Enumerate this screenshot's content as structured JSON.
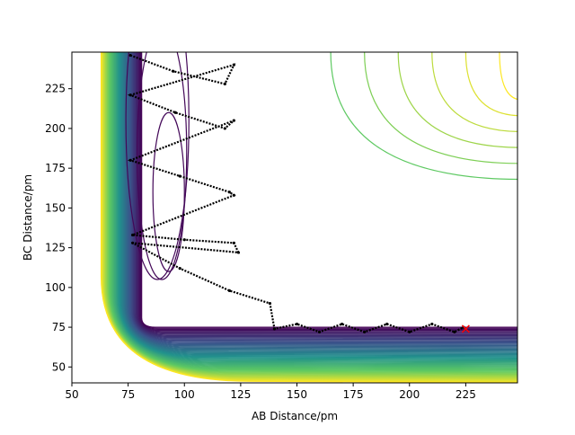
{
  "chart_data": {
    "type": "contour",
    "title": "",
    "xlabel": "AB Distance/pm",
    "ylabel": "BC Distance/pm",
    "xlim": [
      50,
      248
    ],
    "ylim": [
      40,
      248
    ],
    "xticks": [
      50,
      75,
      100,
      125,
      150,
      175,
      200,
      225
    ],
    "yticks": [
      50,
      75,
      100,
      125,
      150,
      175,
      200,
      225
    ],
    "colormap": [
      "#440154",
      "#3b528b",
      "#21918c",
      "#5ec962",
      "#fde725"
    ],
    "contour_levels": 60,
    "trajectory_color": "#000000",
    "trajectory": {
      "x": [
        76,
        95,
        118,
        122,
        76,
        96,
        118,
        122,
        76,
        98,
        120,
        122,
        77,
        100,
        122,
        124,
        77,
        98,
        120,
        138,
        140,
        150,
        160,
        170,
        180,
        190,
        200,
        210,
        220,
        224
      ],
      "y": [
        246,
        236,
        228,
        240,
        221,
        210,
        200,
        205,
        180,
        170,
        160,
        158,
        133,
        130,
        128,
        122,
        128,
        112,
        98,
        90,
        74,
        77,
        72,
        77,
        72,
        77,
        72,
        77,
        72,
        75
      ]
    },
    "endpoint": {
      "x": 225,
      "y": 74,
      "marker": "x",
      "color": "#ff0000"
    }
  }
}
